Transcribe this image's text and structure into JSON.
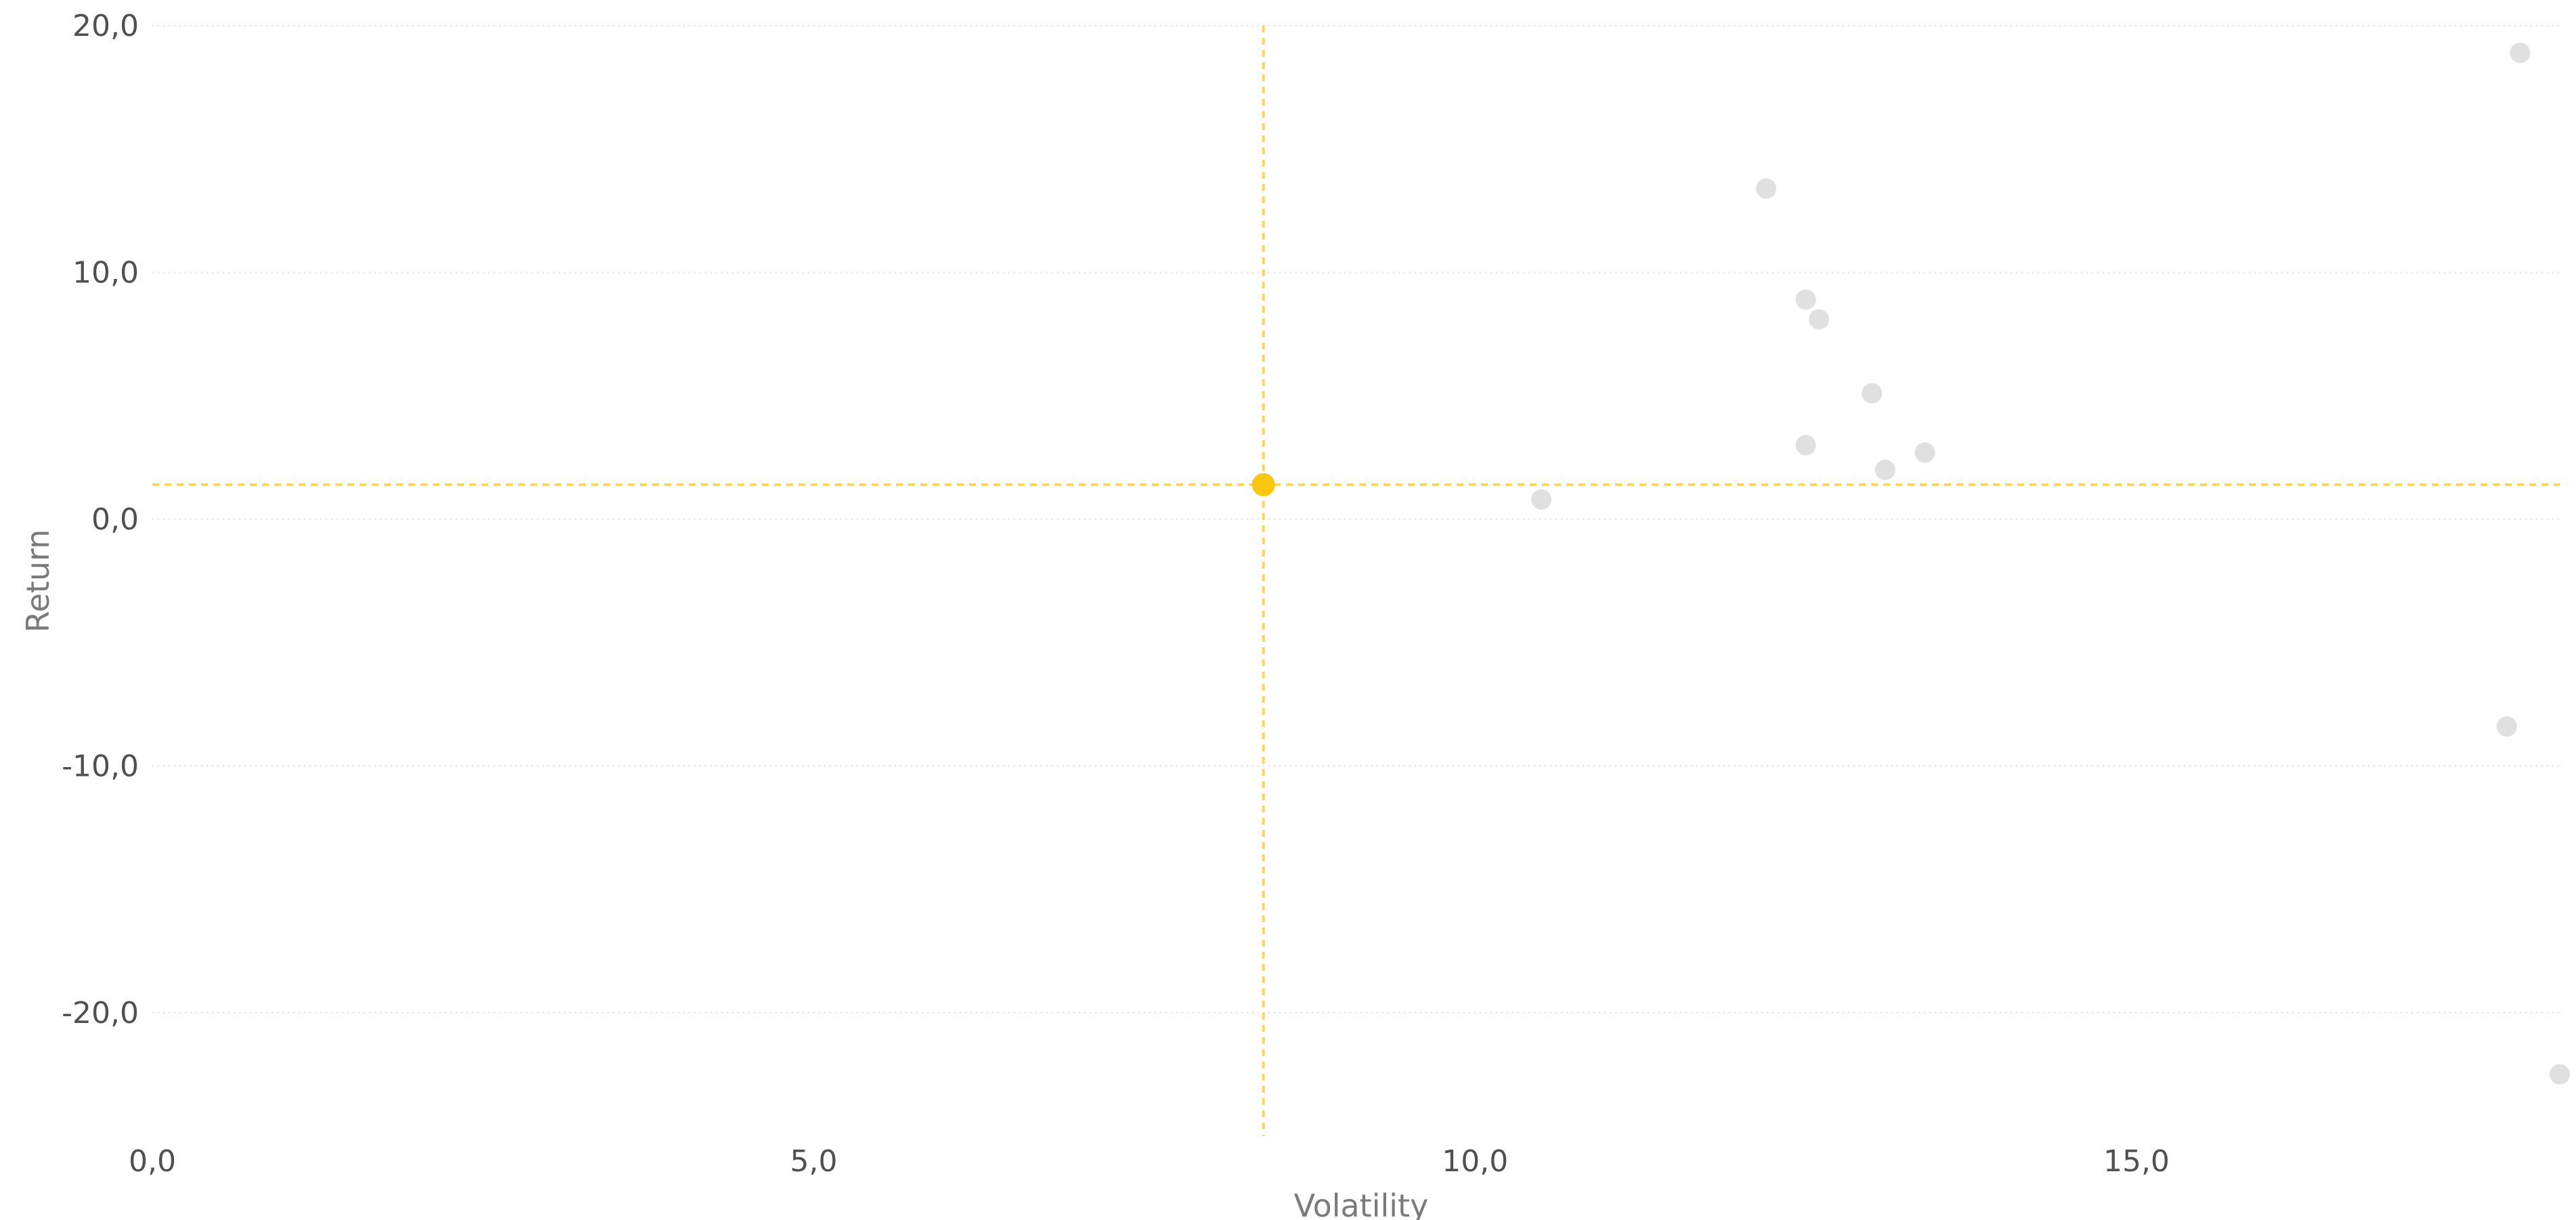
{
  "chart_data": {
    "type": "scatter",
    "title": "",
    "xlabel": "Volatility",
    "ylabel": "Return",
    "xlim": [
      0,
      18.2
    ],
    "ylim": [
      -25,
      20
    ],
    "x_ticks": [
      0,
      5,
      10,
      15
    ],
    "x_tick_labels": [
      "0,0",
      "5,0",
      "10,0",
      "15,0"
    ],
    "y_ticks": [
      20,
      10,
      0,
      -10,
      -20
    ],
    "y_tick_labels": [
      "20,0",
      "10,0",
      "0,0",
      "-10,0",
      "-20,0"
    ],
    "grid": "horizontal-dotted",
    "colors": {
      "points": "#e0e0e0",
      "highlight": "#f9c80e",
      "reference_lines": "#f9c80e",
      "grid": "#dcdcdc"
    },
    "points": [
      {
        "x": 10.5,
        "y": 0.8
      },
      {
        "x": 12.2,
        "y": 13.4
      },
      {
        "x": 12.5,
        "y": 8.9
      },
      {
        "x": 12.6,
        "y": 8.1
      },
      {
        "x": 12.5,
        "y": 3.0
      },
      {
        "x": 13.0,
        "y": 5.1
      },
      {
        "x": 13.1,
        "y": 2.0
      },
      {
        "x": 13.4,
        "y": 2.7
      },
      {
        "x": 17.8,
        "y": -8.4
      },
      {
        "x": 17.9,
        "y": 18.9
      },
      {
        "x": 18.2,
        "y": -22.5
      }
    ],
    "highlight_point": {
      "x": 8.4,
      "y": 1.4
    },
    "reference_lines": {
      "x": 8.4,
      "y": 1.4
    }
  }
}
